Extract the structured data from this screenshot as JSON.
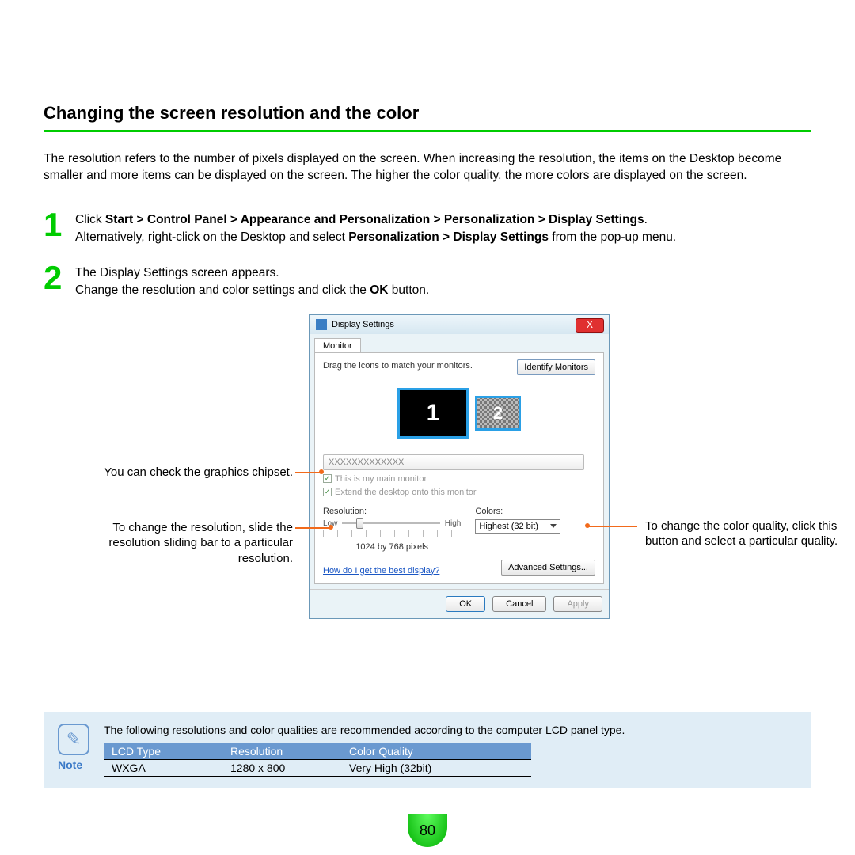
{
  "colors": {
    "accent_green": "#00cc00",
    "callout_orange": "#f26a1b",
    "note_bg": "#e0edf6",
    "note_blue": "#6a99d0",
    "link_blue": "#1a56c4",
    "table_header_bg": "#6a99d0"
  },
  "title": "Changing the screen resolution and the color",
  "intro": "The resolution refers to the number of pixels displayed on the screen. When increasing the resolution, the items on the Desktop become smaller and more items can be displayed on the screen. The higher the color quality, the more colors are displayed on the screen.",
  "steps": [
    {
      "num": "1",
      "line1_a": "Click ",
      "line1_b": "Start > Control Panel > Appearance and Personalization > Personalization > Display Settings",
      "line1_c": ".",
      "line2_a": "Alternatively, right-click on the Desktop and select ",
      "line2_b": "Personalization > Display Settings",
      "line2_c": " from the pop-up menu."
    },
    {
      "num": "2",
      "line1": "The Display Settings screen appears.",
      "line2_a": "Change the resolution and color settings and click the ",
      "line2_b": "OK",
      "line2_c": " button."
    }
  ],
  "dialog": {
    "title": "Display Settings",
    "close": "X",
    "tab": "Monitor",
    "drag_label": "Drag the icons to match your monitors.",
    "identify": "Identify Monitors",
    "monitor1": "1",
    "monitor2": "2",
    "chipset": "XXXXXXXXXXXXX",
    "chk1": "This is my main monitor",
    "chk2": "Extend the desktop onto this monitor",
    "res_label": "Resolution:",
    "low": "Low",
    "high": "High",
    "res_value": "1024 by 768 pixels",
    "colors_label": "Colors:",
    "colors_value": "Highest (32 bit)",
    "link": "How do I get the best display?",
    "advanced": "Advanced Settings...",
    "ok": "OK",
    "cancel": "Cancel",
    "apply": "Apply"
  },
  "callouts": {
    "left1": "You can check the graphics chipset.",
    "left2": "To change the resolution, slide the resolution sliding bar to a particular resolution.",
    "right": "To change the color quality, click this button and select a particular quality."
  },
  "note": {
    "label": "Note",
    "text": "The following resolutions and color qualities are recommended according to the computer LCD panel type.",
    "table": {
      "columns": [
        "LCD Type",
        "Resolution",
        "Color Quality"
      ],
      "rows": [
        [
          "WXGA",
          "1280 x 800",
          "Very High (32bit)"
        ]
      ],
      "col_widths": [
        "150px",
        "150px",
        "240px"
      ]
    }
  },
  "page_number": "80"
}
